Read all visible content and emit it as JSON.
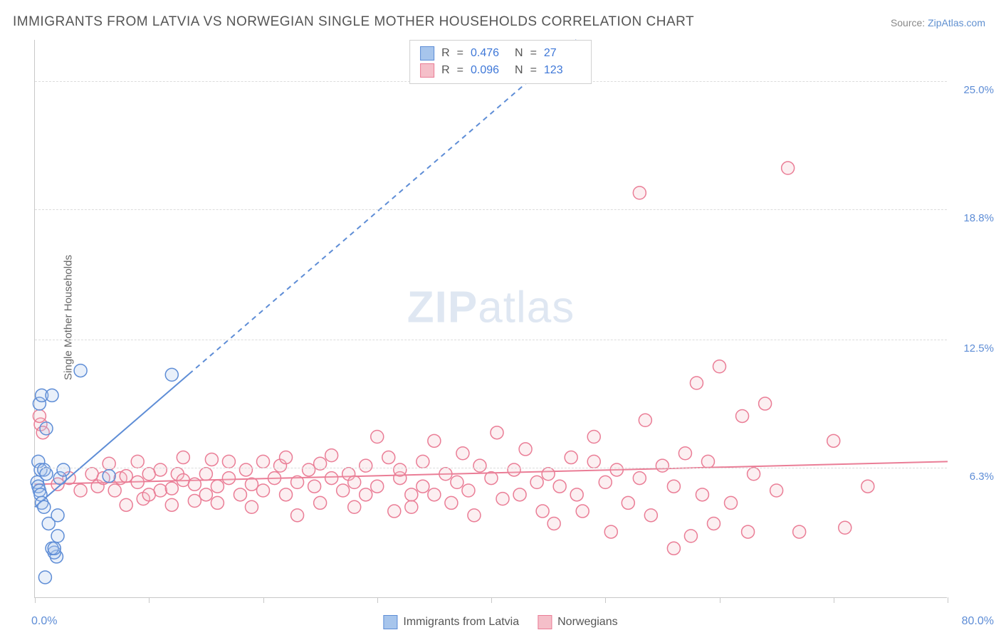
{
  "title": "IMMIGRANTS FROM LATVIA VS NORWEGIAN SINGLE MOTHER HOUSEHOLDS CORRELATION CHART",
  "source_label": "Source:",
  "source_value": "ZipAtlas.com",
  "y_axis_label": "Single Mother Households",
  "watermark_bold": "ZIP",
  "watermark_rest": "atlas",
  "chart": {
    "type": "scatter",
    "background_color": "#ffffff",
    "grid_color": "#dcdcdc",
    "axis_color": "#c8c8c8",
    "xlim": [
      0,
      80
    ],
    "ylim": [
      0,
      27
    ],
    "x_min_label": "0.0%",
    "x_max_label": "80.0%",
    "x_tick_positions": [
      0,
      10,
      20,
      30,
      40,
      50,
      60,
      70,
      80
    ],
    "y_ticks": [
      {
        "v": 6.3,
        "label": "6.3%"
      },
      {
        "v": 12.5,
        "label": "12.5%"
      },
      {
        "v": 18.8,
        "label": "18.8%"
      },
      {
        "v": 25.0,
        "label": "25.0%"
      }
    ],
    "text_color": "#555555",
    "tick_label_color": "#5e8dd6",
    "title_fontsize": 19,
    "label_fontsize": 15,
    "marker_radius": 9,
    "marker_stroke_width": 1.5,
    "marker_fill_opacity": 0.25,
    "series": [
      {
        "name": "Immigrants from Latvia",
        "color_fill": "#a7c5ec",
        "color_stroke": "#5e8dd6",
        "R": "0.476",
        "N": "27",
        "trend": {
          "x1": 0,
          "y1": 4.4,
          "x2": 80,
          "y2": 42.5,
          "solid_until_x": 13.5,
          "dash": "7,6",
          "width": 2
        },
        "points": [
          [
            0.2,
            5.6
          ],
          [
            0.3,
            5.4
          ],
          [
            0.4,
            5.2
          ],
          [
            0.5,
            5.0
          ],
          [
            0.6,
            4.6
          ],
          [
            0.8,
            4.4
          ],
          [
            0.9,
            1.0
          ],
          [
            0.4,
            9.4
          ],
          [
            0.6,
            9.8
          ],
          [
            0.3,
            6.6
          ],
          [
            0.5,
            6.2
          ],
          [
            0.8,
            6.2
          ],
          [
            1.0,
            6.0
          ],
          [
            1.0,
            8.2
          ],
          [
            1.2,
            3.6
          ],
          [
            2.0,
            4.0
          ],
          [
            2.0,
            3.0
          ],
          [
            1.9,
            2.0
          ],
          [
            1.7,
            2.2
          ],
          [
            1.5,
            2.4
          ],
          [
            1.7,
            2.4
          ],
          [
            1.5,
            9.8
          ],
          [
            2.2,
            5.8
          ],
          [
            4.0,
            11.0
          ],
          [
            6.5,
            5.9
          ],
          [
            12.0,
            10.8
          ],
          [
            2.5,
            6.2
          ]
        ]
      },
      {
        "name": "Norwegians",
        "color_fill": "#f5bfc9",
        "color_stroke": "#ea7d96",
        "R": "0.096",
        "N": "123",
        "trend": {
          "x1": 0,
          "y1": 5.5,
          "x2": 80,
          "y2": 6.6,
          "solid_until_x": 80,
          "dash": "",
          "width": 2
        },
        "points": [
          [
            0.5,
            8.4
          ],
          [
            0.4,
            8.8
          ],
          [
            0.7,
            8.0
          ],
          [
            2,
            5.5
          ],
          [
            3,
            5.8
          ],
          [
            4,
            5.2
          ],
          [
            5,
            6.0
          ],
          [
            5.5,
            5.4
          ],
          [
            6,
            5.8
          ],
          [
            6.5,
            6.5
          ],
          [
            7,
            5.2
          ],
          [
            7.5,
            5.8
          ],
          [
            8,
            4.5
          ],
          [
            8,
            5.9
          ],
          [
            9,
            5.6
          ],
          [
            9,
            6.6
          ],
          [
            9.5,
            4.8
          ],
          [
            10,
            6.0
          ],
          [
            10,
            5.0
          ],
          [
            11,
            6.2
          ],
          [
            11,
            5.2
          ],
          [
            12,
            5.3
          ],
          [
            12,
            4.5
          ],
          [
            12.5,
            6.0
          ],
          [
            13,
            5.7
          ],
          [
            13,
            6.8
          ],
          [
            14,
            5.5
          ],
          [
            14,
            4.7
          ],
          [
            15,
            6.0
          ],
          [
            15,
            5.0
          ],
          [
            15.5,
            6.7
          ],
          [
            16,
            5.4
          ],
          [
            16,
            4.6
          ],
          [
            17,
            5.8
          ],
          [
            17,
            6.6
          ],
          [
            18,
            5.0
          ],
          [
            18.5,
            6.2
          ],
          [
            19,
            5.5
          ],
          [
            19,
            4.4
          ],
          [
            20,
            6.6
          ],
          [
            20,
            5.2
          ],
          [
            21,
            5.8
          ],
          [
            21.5,
            6.4
          ],
          [
            22,
            5.0
          ],
          [
            22,
            6.8
          ],
          [
            23,
            4.0
          ],
          [
            23,
            5.6
          ],
          [
            24,
            6.2
          ],
          [
            24.5,
            5.4
          ],
          [
            25,
            6.5
          ],
          [
            25,
            4.6
          ],
          [
            26,
            5.8
          ],
          [
            26,
            6.9
          ],
          [
            27,
            5.2
          ],
          [
            27.5,
            6.0
          ],
          [
            28,
            4.4
          ],
          [
            28,
            5.6
          ],
          [
            29,
            6.4
          ],
          [
            29,
            5.0
          ],
          [
            30,
            7.8
          ],
          [
            30,
            5.4
          ],
          [
            31,
            6.8
          ],
          [
            31.5,
            4.2
          ],
          [
            32,
            5.8
          ],
          [
            32,
            6.2
          ],
          [
            33,
            5.0
          ],
          [
            33,
            4.4
          ],
          [
            34,
            6.6
          ],
          [
            34,
            5.4
          ],
          [
            35,
            7.6
          ],
          [
            35,
            5.0
          ],
          [
            36,
            6.0
          ],
          [
            36.5,
            4.6
          ],
          [
            37,
            5.6
          ],
          [
            37.5,
            7.0
          ],
          [
            38,
            5.2
          ],
          [
            38.5,
            4.0
          ],
          [
            39,
            6.4
          ],
          [
            40,
            5.8
          ],
          [
            40.5,
            8.0
          ],
          [
            41,
            4.8
          ],
          [
            42,
            6.2
          ],
          [
            42.5,
            5.0
          ],
          [
            43,
            7.2
          ],
          [
            44,
            5.6
          ],
          [
            44.5,
            4.2
          ],
          [
            45,
            6.0
          ],
          [
            45.5,
            3.6
          ],
          [
            46,
            5.4
          ],
          [
            47,
            6.8
          ],
          [
            47.5,
            5.0
          ],
          [
            48,
            4.2
          ],
          [
            49,
            6.6
          ],
          [
            49,
            7.8
          ],
          [
            50,
            5.6
          ],
          [
            50.5,
            3.2
          ],
          [
            51,
            6.2
          ],
          [
            52,
            4.6
          ],
          [
            53,
            5.8
          ],
          [
            53.5,
            8.6
          ],
          [
            54,
            4.0
          ],
          [
            55,
            6.4
          ],
          [
            56,
            2.4
          ],
          [
            56,
            5.4
          ],
          [
            57,
            7.0
          ],
          [
            57.5,
            3.0
          ],
          [
            58,
            10.4
          ],
          [
            58.5,
            5.0
          ],
          [
            59,
            6.6
          ],
          [
            59.5,
            3.6
          ],
          [
            60,
            11.2
          ],
          [
            61,
            4.6
          ],
          [
            62,
            8.8
          ],
          [
            62.5,
            3.2
          ],
          [
            63,
            6.0
          ],
          [
            64,
            9.4
          ],
          [
            53,
            19.6
          ],
          [
            65,
            5.2
          ],
          [
            67,
            3.2
          ],
          [
            66,
            20.8
          ],
          [
            70,
            7.6
          ],
          [
            71,
            3.4
          ],
          [
            73,
            5.4
          ]
        ]
      }
    ]
  },
  "stat_legend_labels": {
    "R": "R",
    "eq": "=",
    "N": "N"
  }
}
